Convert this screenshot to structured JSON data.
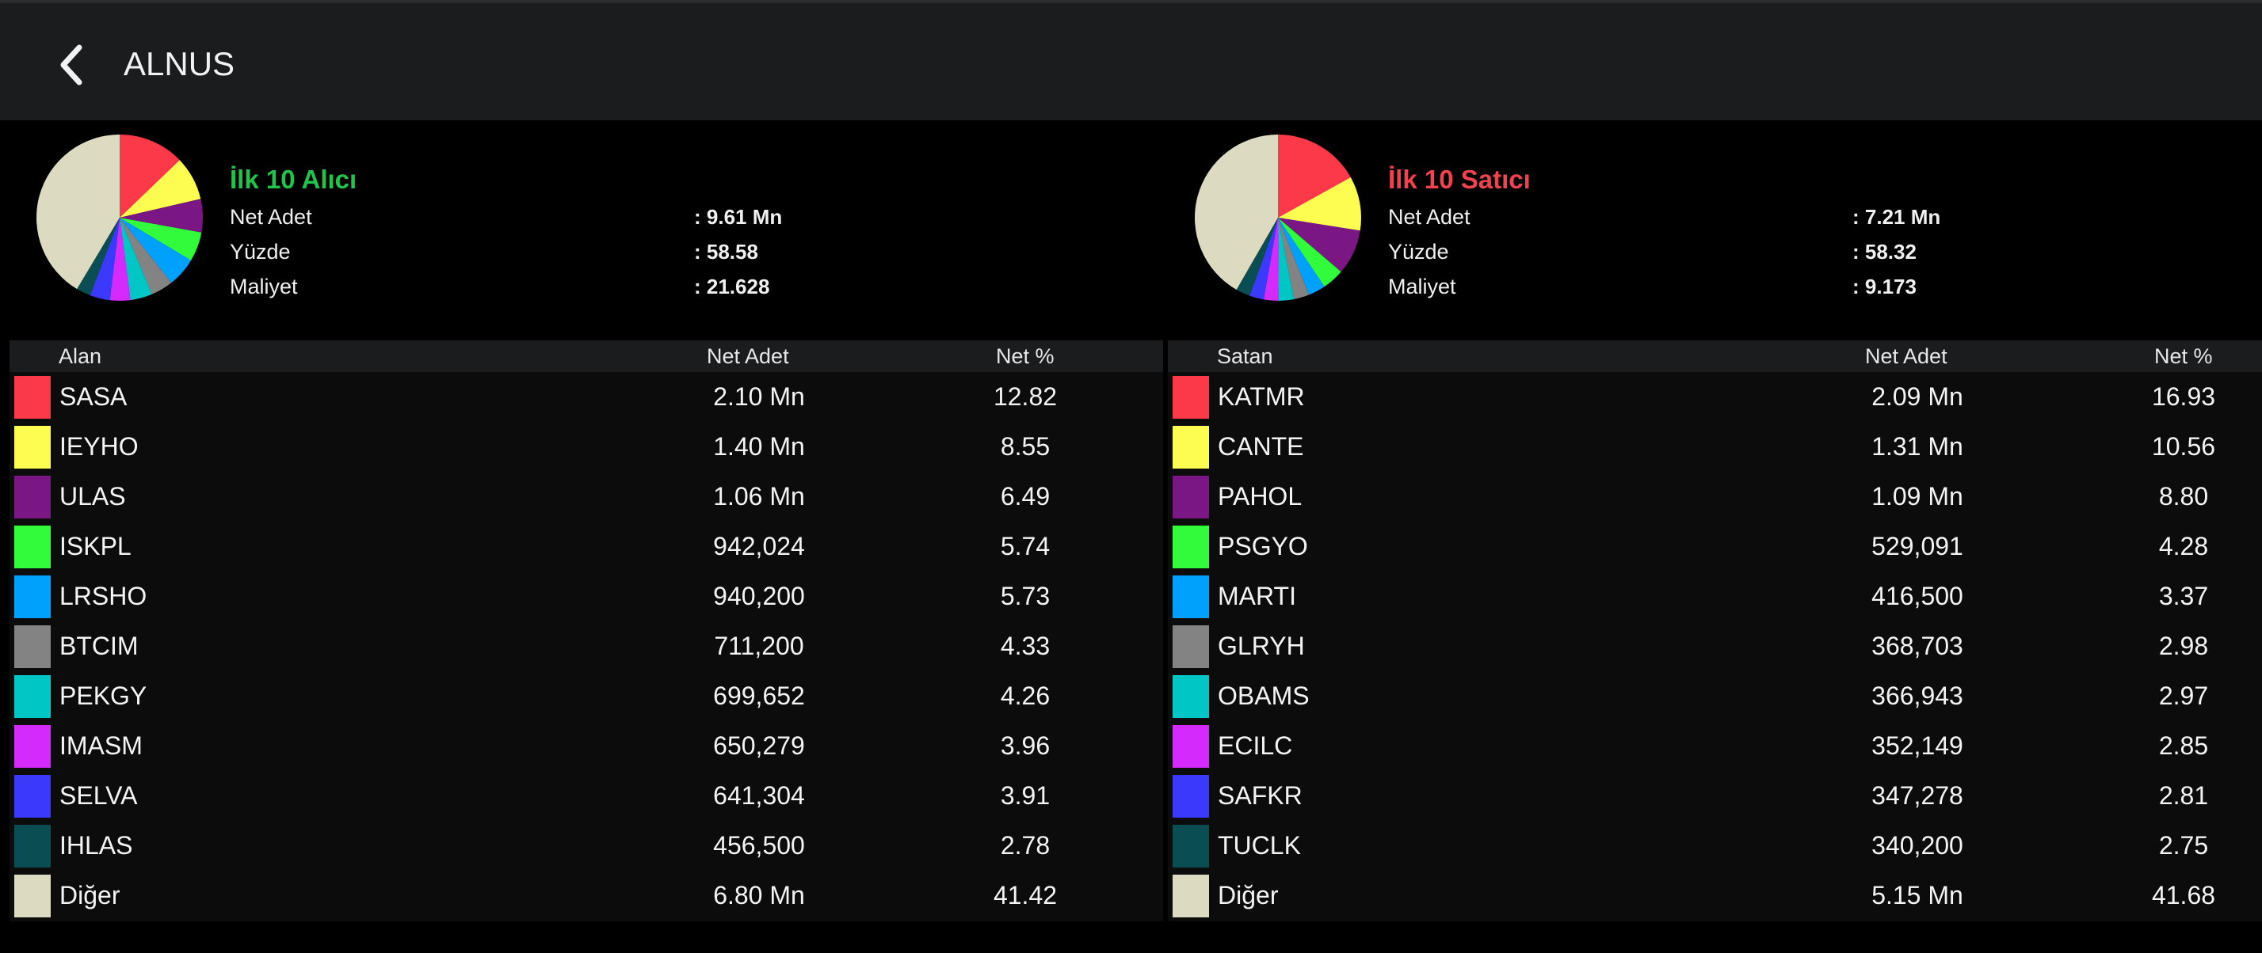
{
  "header": {
    "title": "ALNUS"
  },
  "colors": [
    "#fc3949",
    "#fcfc51",
    "#7b1785",
    "#32fb3c",
    "#00a0fd",
    "#838383",
    "#00c6c6",
    "#d52afc",
    "#3b3afc",
    "#0a4d52",
    "#dcdbc2"
  ],
  "buyers": {
    "title": "İlk 10 Alıcı",
    "summary": [
      {
        "label": "Net Adet",
        "value": "9.61 Mn"
      },
      {
        "label": "Yüzde",
        "value": "58.58"
      },
      {
        "label": "Maliyet",
        "value": "21.628"
      }
    ],
    "columns": {
      "name": "Alan",
      "adet": "Net Adet",
      "pct": "Net %"
    },
    "rows": [
      {
        "name": "SASA",
        "adet": "2.10 Mn",
        "pct": "12.82"
      },
      {
        "name": "IEYHO",
        "adet": "1.40 Mn",
        "pct": "8.55"
      },
      {
        "name": "ULAS",
        "adet": "1.06 Mn",
        "pct": "6.49"
      },
      {
        "name": "ISKPL",
        "adet": "942,024",
        "pct": "5.74"
      },
      {
        "name": "LRSHO",
        "adet": "940,200",
        "pct": "5.73"
      },
      {
        "name": "BTCIM",
        "adet": "711,200",
        "pct": "4.33"
      },
      {
        "name": "PEKGY",
        "adet": "699,652",
        "pct": "4.26"
      },
      {
        "name": "IMASM",
        "adet": "650,279",
        "pct": "3.96"
      },
      {
        "name": "SELVA",
        "adet": "641,304",
        "pct": "3.91"
      },
      {
        "name": "IHLAS",
        "adet": "456,500",
        "pct": "2.78"
      },
      {
        "name": "Diğer",
        "adet": "6.80 Mn",
        "pct": "41.42"
      }
    ]
  },
  "sellers": {
    "title": "İlk 10 Satıcı",
    "summary": [
      {
        "label": "Net Adet",
        "value": "7.21 Mn"
      },
      {
        "label": "Yüzde",
        "value": "58.32"
      },
      {
        "label": "Maliyet",
        "value": "9.173"
      }
    ],
    "columns": {
      "name": "Satan",
      "adet": "Net Adet",
      "pct": "Net %"
    },
    "rows": [
      {
        "name": "KATMR",
        "adet": "2.09 Mn",
        "pct": "16.93"
      },
      {
        "name": "CANTE",
        "adet": "1.31 Mn",
        "pct": "10.56"
      },
      {
        "name": "PAHOL",
        "adet": "1.09 Mn",
        "pct": "8.80"
      },
      {
        "name": "PSGYO",
        "adet": "529,091",
        "pct": "4.28"
      },
      {
        "name": "MARTI",
        "adet": "416,500",
        "pct": "3.37"
      },
      {
        "name": "GLRYH",
        "adet": "368,703",
        "pct": "2.98"
      },
      {
        "name": "OBAMS",
        "adet": "366,943",
        "pct": "2.97"
      },
      {
        "name": "ECILC",
        "adet": "352,149",
        "pct": "2.85"
      },
      {
        "name": "SAFKR",
        "adet": "347,278",
        "pct": "2.81"
      },
      {
        "name": "TUCLK",
        "adet": "340,200",
        "pct": "2.75"
      },
      {
        "name": "Diğer",
        "adet": "5.15 Mn",
        "pct": "41.68"
      }
    ]
  }
}
